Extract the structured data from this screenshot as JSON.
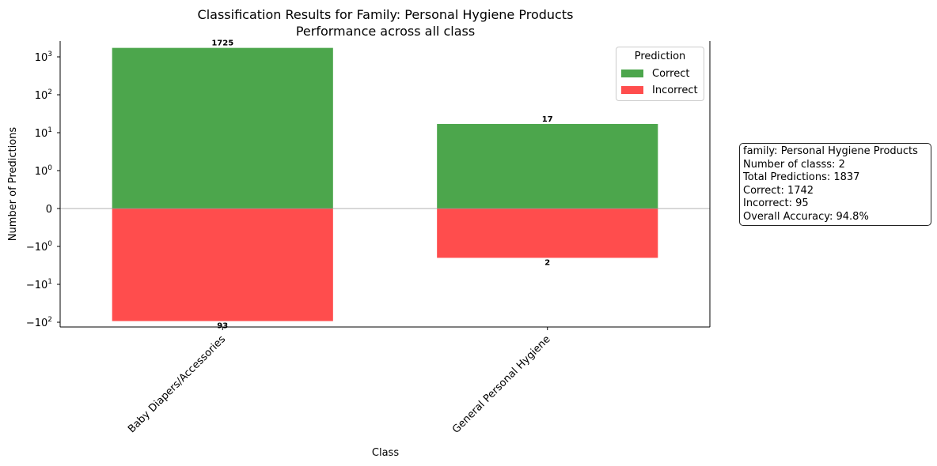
{
  "chart_data": {
    "type": "bar",
    "stacked": "diverging",
    "yscale": "symlog",
    "title": "Classification Results for Family: Personal Hygiene Products",
    "subtitle": "Performance across all class",
    "xlabel": "Class",
    "ylabel": "Number of Predictions",
    "categories": [
      "Baby Diapers/Accessories",
      "General Personal Hygiene"
    ],
    "series": [
      {
        "name": "Correct",
        "values": [
          1725,
          17
        ],
        "color": "#4ca64c"
      },
      {
        "name": "Incorrect",
        "values": [
          93,
          2
        ],
        "color": "#ff4d4d"
      }
    ],
    "incorrect_plotted_negative": true,
    "data_labels": {
      "correct": [
        "1725",
        "17"
      ],
      "incorrect": [
        "93",
        "2"
      ]
    },
    "yticks": [
      {
        "value": 1000,
        "base": "10",
        "exp": "3"
      },
      {
        "value": 100,
        "base": "10",
        "exp": "2"
      },
      {
        "value": 10,
        "base": "10",
        "exp": "1"
      },
      {
        "value": 1,
        "base": "10",
        "exp": "0"
      },
      {
        "value": 0,
        "base": "0",
        "exp": ""
      },
      {
        "value": -1,
        "base": "−10",
        "exp": "0"
      },
      {
        "value": -10,
        "base": "−10",
        "exp": "1"
      },
      {
        "value": -100,
        "base": "−10",
        "exp": "2"
      }
    ],
    "legend": {
      "title": "Prediction",
      "location": "top-right"
    },
    "grid": false
  },
  "info_box": {
    "lines": [
      "family: Personal Hygiene Products",
      "Number of classs: 2",
      "Total Predictions: 1837",
      "Correct: 1742",
      "Incorrect: 95",
      "Overall Accuracy: 94.8%"
    ]
  }
}
